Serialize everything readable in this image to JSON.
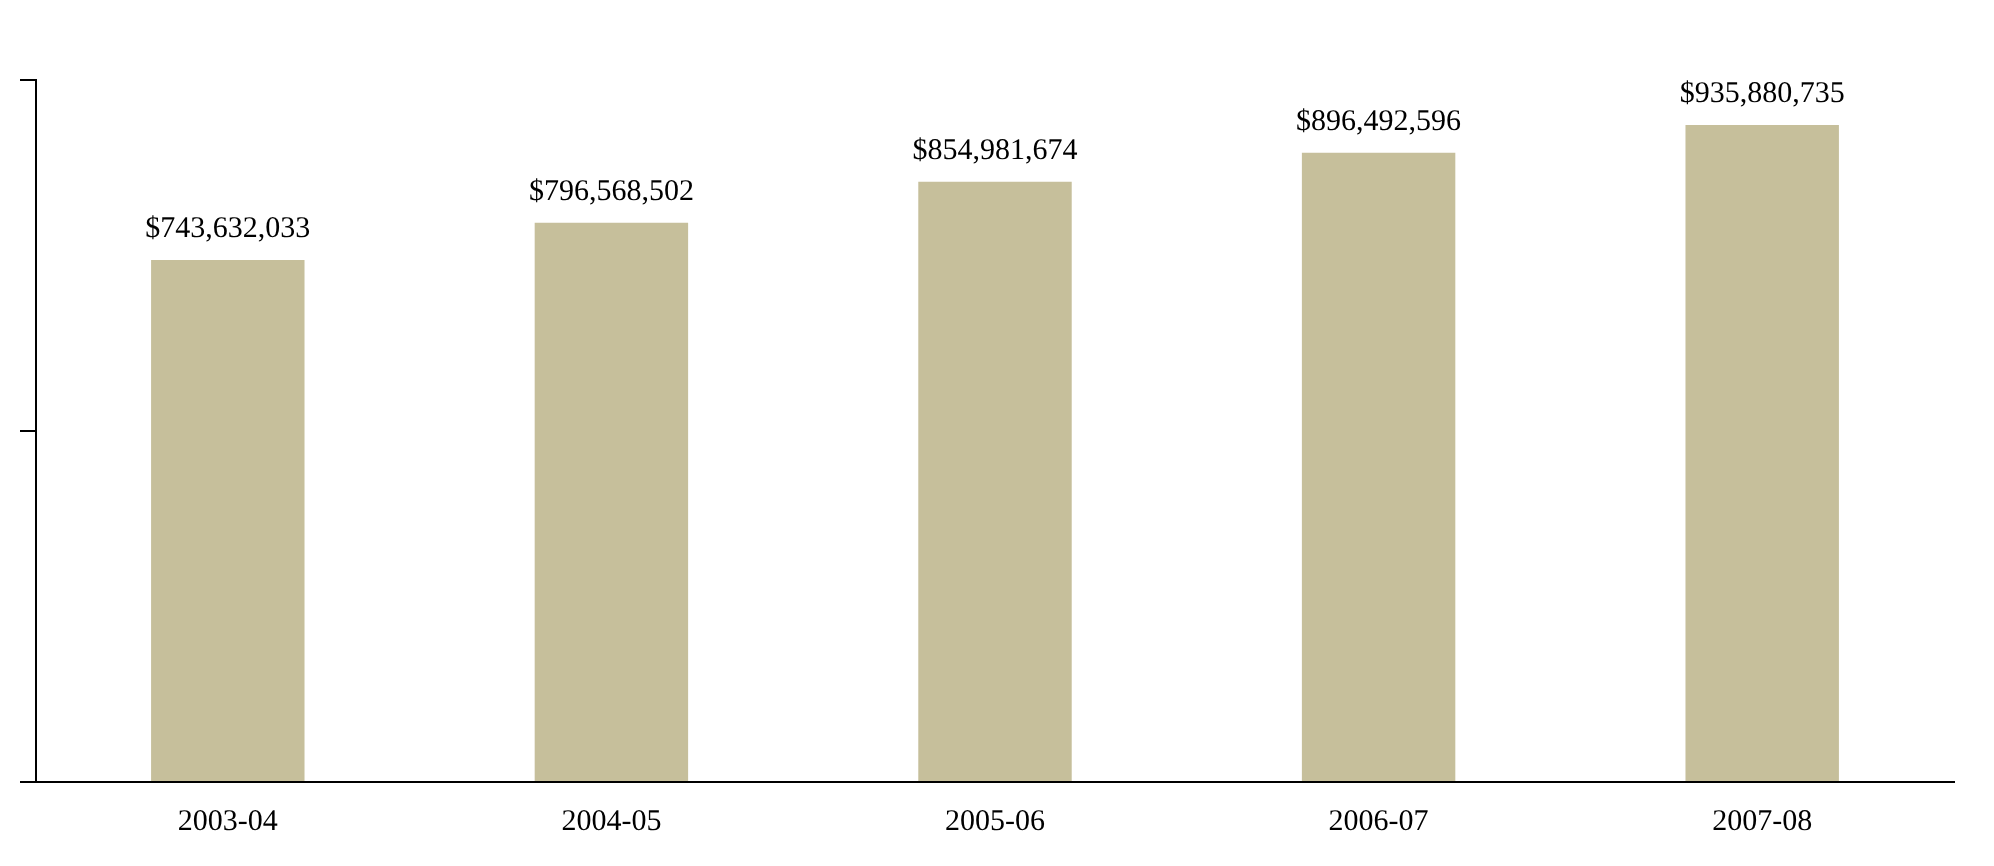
{
  "chart_data": {
    "type": "bar",
    "categories": [
      "2003-04",
      "2004-05",
      "2005-06",
      "2006-07",
      "2007-08"
    ],
    "values": [
      743632033,
      796568502,
      854981674,
      896492596,
      935880735
    ],
    "value_labels": [
      "$743,632,033",
      "$796,568,502",
      "$854,981,674",
      "$896,492,596",
      "$935,880,735"
    ],
    "color": "#c6bf9b",
    "grid": false,
    "legend": false,
    "tick_labels": "x"
  }
}
